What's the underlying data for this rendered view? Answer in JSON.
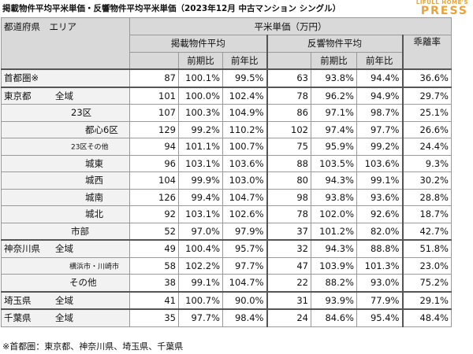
{
  "header": {
    "title": "掲載物件平均平米単価・反響物件平均平米単価（2023年12月 中古マンション シングル）",
    "logo_top": "LIFULL HOME'S",
    "logo_bottom": "PRESS"
  },
  "table": {
    "area_header": "都道府県　エリア",
    "unit_header": "平米単価（万円）",
    "listed_header": "掲載物件平均",
    "inquiry_header": "反響物件平均",
    "gap_header": "乖離率",
    "sub_headers": [
      "前期比",
      "前年比",
      "前期比",
      "前年比"
    ],
    "rows": [
      {
        "region": "首都圏※",
        "values": [
          87,
          "100.1%",
          "99.5%",
          63,
          "93.8%",
          "94.4%",
          "36.6%"
        ]
      },
      {
        "region": "東京都",
        "area": "全域",
        "values": [
          101,
          "100.0%",
          "102.4%",
          78,
          "96.2%",
          "94.9%",
          "29.7%"
        ]
      },
      {
        "area": "23区",
        "values": [
          107,
          "100.3%",
          "104.9%",
          86,
          "97.1%",
          "98.7%",
          "25.1%"
        ]
      },
      {
        "area": "都心6区",
        "values": [
          129,
          "99.2%",
          "110.2%",
          102,
          "97.4%",
          "97.7%",
          "26.6%"
        ]
      },
      {
        "area": "23区その他",
        "values": [
          94,
          "101.1%",
          "100.7%",
          75,
          "95.9%",
          "99.2%",
          "24.4%"
        ]
      },
      {
        "area": "城東",
        "values": [
          96,
          "103.1%",
          "103.6%",
          88,
          "103.5%",
          "103.6%",
          "9.3%"
        ]
      },
      {
        "area": "城西",
        "values": [
          104,
          "99.9%",
          "103.0%",
          80,
          "94.3%",
          "99.1%",
          "30.2%"
        ]
      },
      {
        "area": "城南",
        "values": [
          126,
          "99.4%",
          "104.7%",
          98,
          "93.8%",
          "93.6%",
          "28.8%"
        ]
      },
      {
        "area": "城北",
        "values": [
          92,
          "103.1%",
          "102.6%",
          78,
          "102.0%",
          "92.6%",
          "18.7%"
        ]
      },
      {
        "area": "市部",
        "values": [
          52,
          "97.0%",
          "97.9%",
          37,
          "101.2%",
          "82.0%",
          "42.7%"
        ]
      },
      {
        "region": "神奈川県",
        "area": "全域",
        "values": [
          49,
          "100.4%",
          "95.7%",
          32,
          "94.3%",
          "88.8%",
          "51.8%"
        ]
      },
      {
        "area": "横浜市・川崎市",
        "values": [
          58,
          "102.2%",
          "97.7%",
          47,
          "103.9%",
          "101.3%",
          "23.0%"
        ]
      },
      {
        "area": "その他",
        "values": [
          38,
          "99.1%",
          "104.7%",
          22,
          "88.2%",
          "93.0%",
          "75.2%"
        ]
      },
      {
        "region": "埼玉県",
        "area": "全域",
        "values": [
          41,
          "100.7%",
          "90.0%",
          31,
          "93.9%",
          "77.9%",
          "29.1%"
        ]
      },
      {
        "region": "千葉県",
        "area": "全域",
        "values": [
          35,
          "97.7%",
          "98.4%",
          24,
          "84.6%",
          "95.4%",
          "48.4%"
        ]
      }
    ]
  },
  "footnote": "※首都圏：東京都、神奈川県、埼玉県、千葉県"
}
